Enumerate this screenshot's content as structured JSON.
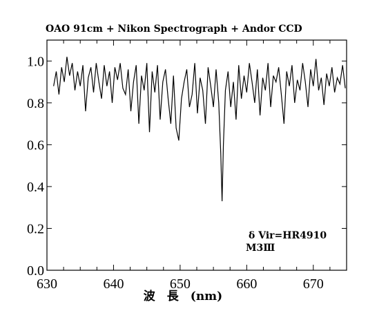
{
  "chart_data": {
    "type": "line",
    "title": "OAO 91cm + Nikon Spectrograph + Andor CCD",
    "xlabel": "波　長　(nm)",
    "ylabel": "",
    "xlim": [
      630,
      675
    ],
    "ylim": [
      0.0,
      1.1
    ],
    "xticks": [
      630,
      640,
      650,
      660,
      670
    ],
    "xtick_labels": [
      "630",
      "640",
      "650",
      "660",
      "670"
    ],
    "yticks": [
      0.0,
      0.2,
      0.4,
      0.6,
      0.8,
      1.0
    ],
    "ytick_labels": [
      "0.0",
      "0.2",
      "0.4",
      "0.6",
      "0.8",
      "1.0"
    ],
    "grid": false,
    "annotations": [
      "δ Vir=HR4910",
      "M3Ⅲ"
    ],
    "series": [
      {
        "color": "#000000",
        "x": [
          631.0,
          631.4,
          631.8,
          632.2,
          632.6,
          633.0,
          633.4,
          633.8,
          634.2,
          634.6,
          635.0,
          635.4,
          635.8,
          636.2,
          636.6,
          637.0,
          637.4,
          637.8,
          638.2,
          638.6,
          639.0,
          639.4,
          639.8,
          640.2,
          640.6,
          641.0,
          641.4,
          641.8,
          642.2,
          642.6,
          643.0,
          643.4,
          643.8,
          644.2,
          644.6,
          645.0,
          645.4,
          645.8,
          646.2,
          646.6,
          647.0,
          647.4,
          647.8,
          648.2,
          648.6,
          649.0,
          649.4,
          649.8,
          650.2,
          650.6,
          651.0,
          651.4,
          651.8,
          652.2,
          652.6,
          653.0,
          653.4,
          653.8,
          654.2,
          654.6,
          655.0,
          655.4,
          655.8,
          656.1,
          656.3,
          656.5,
          656.8,
          657.2,
          657.6,
          658.0,
          658.4,
          658.8,
          659.2,
          659.6,
          660.0,
          660.4,
          660.8,
          661.2,
          661.6,
          662.0,
          662.4,
          662.8,
          663.2,
          663.6,
          664.0,
          664.4,
          664.8,
          665.2,
          665.6,
          666.0,
          666.4,
          666.8,
          667.2,
          667.6,
          668.0,
          668.4,
          668.8,
          669.2,
          669.6,
          670.0,
          670.4,
          670.8,
          671.2,
          671.6,
          672.0,
          672.4,
          672.8,
          673.2,
          673.6,
          674.0,
          674.4,
          674.8
        ],
        "values": [
          0.88,
          0.95,
          0.84,
          0.97,
          0.9,
          1.02,
          0.93,
          0.99,
          0.86,
          0.95,
          0.88,
          0.98,
          0.76,
          0.92,
          0.97,
          0.85,
          0.99,
          0.9,
          0.82,
          0.98,
          0.88,
          0.95,
          0.8,
          0.97,
          0.91,
          0.99,
          0.87,
          0.84,
          0.96,
          0.76,
          0.9,
          0.98,
          0.7,
          0.93,
          0.86,
          0.99,
          0.66,
          0.95,
          0.85,
          0.98,
          0.72,
          0.9,
          0.96,
          0.82,
          0.7,
          0.93,
          0.68,
          0.62,
          0.82,
          0.9,
          0.96,
          0.78,
          0.84,
          0.99,
          0.75,
          0.92,
          0.86,
          0.7,
          0.97,
          0.88,
          0.78,
          0.96,
          0.8,
          0.56,
          0.33,
          0.6,
          0.86,
          0.95,
          0.78,
          0.9,
          0.72,
          0.98,
          0.82,
          0.93,
          0.85,
          0.99,
          0.9,
          0.8,
          0.96,
          0.74,
          0.92,
          0.86,
          0.99,
          0.78,
          0.93,
          0.9,
          0.97,
          0.84,
          0.7,
          0.95,
          0.88,
          0.98,
          0.8,
          0.91,
          0.86,
          0.99,
          0.9,
          0.78,
          0.96,
          0.88,
          1.01,
          0.86,
          0.92,
          0.79,
          0.94,
          0.88,
          0.97,
          0.85,
          0.92,
          0.89,
          0.98,
          0.87
        ]
      }
    ]
  }
}
